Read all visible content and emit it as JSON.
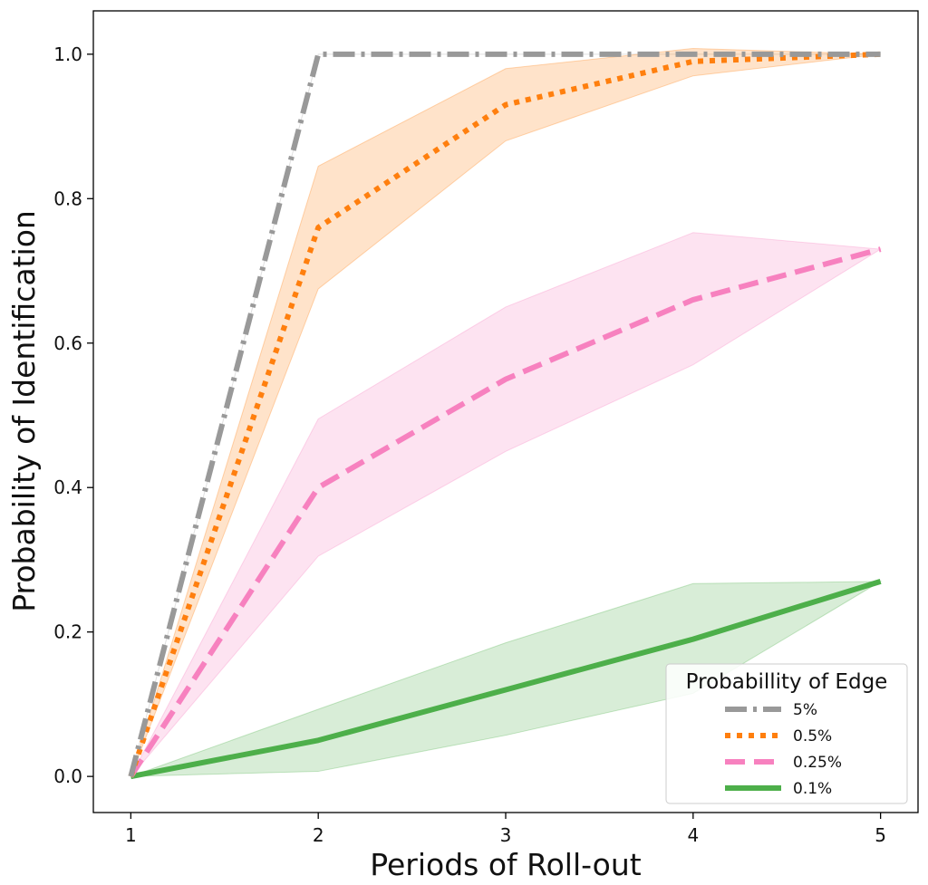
{
  "chart_data": {
    "type": "line",
    "title": "",
    "xlabel": "Periods of Roll-out",
    "ylabel": "Probability of Identification",
    "x": [
      1,
      2,
      3,
      4,
      5
    ],
    "xlim": [
      0.8,
      5.2
    ],
    "ylim": [
      -0.05,
      1.06
    ],
    "xticks": [
      1,
      2,
      3,
      4,
      5
    ],
    "yticks": [
      0.0,
      0.2,
      0.4,
      0.6,
      0.8,
      1.0
    ],
    "grid": false,
    "legend": {
      "title": "Probabillity of Edge",
      "placement": "bottom-right"
    },
    "series": [
      {
        "name": "5%",
        "values": [
          0.0,
          1.0,
          1.0,
          1.0,
          1.0
        ],
        "lower": [
          0.0,
          1.0,
          1.0,
          1.0,
          1.0
        ],
        "upper": [
          0.0,
          1.0,
          1.0,
          1.0,
          1.0
        ],
        "color": "#999999",
        "line_style": "dashdot"
      },
      {
        "name": "0.5%",
        "values": [
          0.0,
          0.76,
          0.93,
          0.99,
          1.0
        ],
        "lower": [
          0.0,
          0.675,
          0.88,
          0.97,
          1.0
        ],
        "upper": [
          0.0,
          0.845,
          0.98,
          1.008,
          1.0
        ],
        "color": "#ff7f0e",
        "line_style": "dotted"
      },
      {
        "name": "0.25%",
        "values": [
          0.0,
          0.4,
          0.55,
          0.66,
          0.73
        ],
        "lower": [
          0.0,
          0.305,
          0.45,
          0.57,
          0.73
        ],
        "upper": [
          0.0,
          0.495,
          0.65,
          0.753,
          0.73
        ],
        "color": "#f781bf",
        "line_style": "dashed"
      },
      {
        "name": "0.1%",
        "values": [
          0.0,
          0.05,
          0.12,
          0.19,
          0.27
        ],
        "lower": [
          0.0,
          0.007,
          0.057,
          0.115,
          0.27
        ],
        "upper": [
          0.0,
          0.093,
          0.185,
          0.267,
          0.27
        ],
        "color": "#4daf4a",
        "line_style": "solid"
      }
    ]
  }
}
